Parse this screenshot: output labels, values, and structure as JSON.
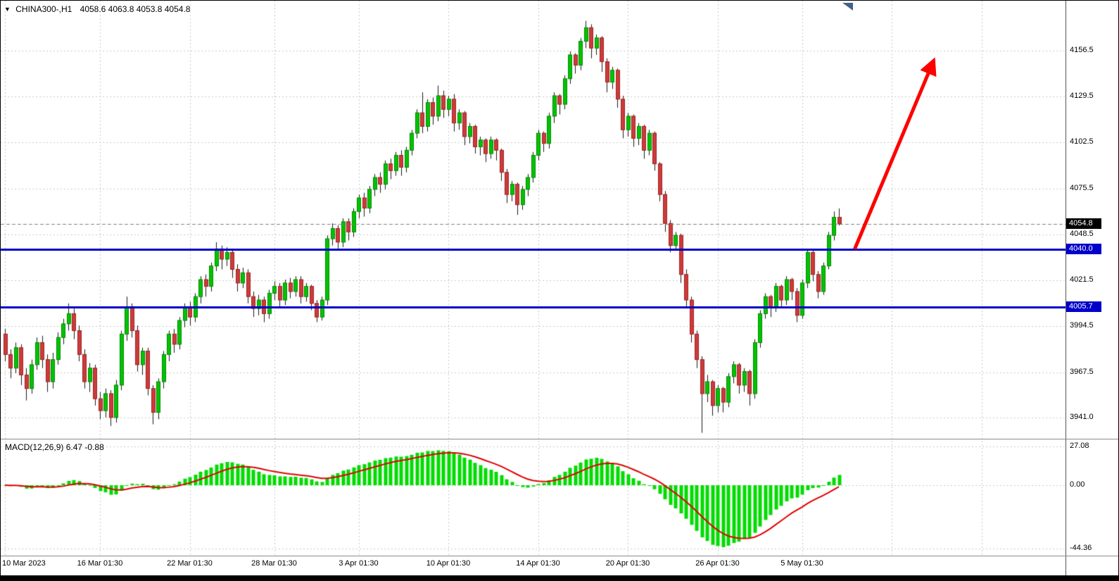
{
  "header": {
    "symbol_timeframe": "CHINA300-,H1",
    "quote": "4058.6 4063.8 4053.8 4054.8"
  },
  "chart_data": {
    "type": "candlestick",
    "title": "CHINA300-,H1",
    "timeframe": "H1",
    "current_bar": {
      "open": 4058.6,
      "high": 4063.8,
      "low": 4053.8,
      "close": 4054.8
    },
    "price_axis": {
      "labels": [
        "4156.5",
        "4129.5",
        "4102.5",
        "4075.5",
        "4048.5",
        "4021.5",
        "3994.5",
        "3967.5",
        "3941.0"
      ],
      "ylim": [
        3928.5,
        4175.5
      ]
    },
    "time_axis": {
      "ticks": [
        {
          "label": "10 Mar 2023",
          "index": 0
        },
        {
          "label": "16 Mar 01:30",
          "index": 18
        },
        {
          "label": "22 Mar 01:30",
          "index": 35
        },
        {
          "label": "28 Mar 01:30",
          "index": 51
        },
        {
          "label": "3 Apr 01:30",
          "index": 67
        },
        {
          "label": "10 Apr 01:30",
          "index": 84
        },
        {
          "label": "14 Apr 01:30",
          "index": 101
        },
        {
          "label": "20 Apr 01:30",
          "index": 118
        },
        {
          "label": "26 Apr 01:30",
          "index": 135
        },
        {
          "label": "5 May 01:30",
          "index": 151
        },
        {
          "label": "",
          "index": 168
        },
        {
          "label": "",
          "index": 185
        }
      ]
    },
    "current_price": {
      "value": 4054.8,
      "label": "4054.8",
      "tag_bg": "#000000"
    },
    "hlines": [
      {
        "price": 4040.0,
        "label": "4040.0",
        "color": "#0000C8"
      },
      {
        "price": 4005.7,
        "label": "4005.7",
        "color": "#0000C8"
      }
    ],
    "arrow": {
      "from_index": 161,
      "from_price": 4040,
      "to_index": 176,
      "to_price": 4151,
      "color": "#FF0000"
    },
    "macd": {
      "label": "MACD(12,26,9) 6.47 -0.88",
      "fast": 12,
      "slow": 26,
      "signal": 9,
      "value": 6.47,
      "signal_value": -0.88,
      "axis_labels": [
        "27.08",
        "0.00",
        "-44.36"
      ],
      "histogram_color": "#00DC00",
      "signal_color": "#E00000"
    },
    "colors": {
      "bull": "#00C400",
      "bull_border": "#008800",
      "bear": "#CC3B3B",
      "bear_border": "#A02020",
      "wick": "#1a1a1a",
      "grid": "#c9c9c9",
      "current_price_line": "#808080"
    },
    "candles": [
      [
        3990,
        3993,
        3974,
        3978
      ],
      [
        3978,
        3981,
        3964,
        3970
      ],
      [
        3970,
        3985,
        3967,
        3982
      ],
      [
        3982,
        3984,
        3960,
        3966
      ],
      [
        3966,
        3970,
        3951,
        3958
      ],
      [
        3958,
        3975,
        3955,
        3972
      ],
      [
        3972,
        3988,
        3969,
        3985
      ],
      [
        3985,
        3989,
        3970,
        3975
      ],
      [
        3975,
        3978,
        3956,
        3962
      ],
      [
        3962,
        3979,
        3958,
        3975
      ],
      [
        3975,
        3991,
        3972,
        3988
      ],
      [
        3988,
        3999,
        3984,
        3996
      ],
      [
        3996,
        4008,
        3992,
        4002
      ],
      [
        4002,
        4005,
        3987,
        3992
      ],
      [
        3992,
        3995,
        3974,
        3978
      ],
      [
        3978,
        3981,
        3958,
        3962
      ],
      [
        3962,
        3973,
        3956,
        3970
      ],
      [
        3970,
        3972,
        3948,
        3952
      ],
      [
        3952,
        3956,
        3940,
        3945
      ],
      [
        3945,
        3958,
        3941,
        3955
      ],
      [
        3955,
        3957,
        3936,
        3941
      ],
      [
        3941,
        3963,
        3938,
        3960
      ],
      [
        3960,
        3992,
        3957,
        3990
      ],
      [
        3990,
        4012,
        3986,
        4006
      ],
      [
        4006,
        4008,
        3988,
        3992
      ],
      [
        3992,
        3995,
        3968,
        3972
      ],
      [
        3972,
        3982,
        3966,
        3980
      ],
      [
        3980,
        3982,
        3954,
        3958
      ],
      [
        3958,
        3960,
        3937,
        3944
      ],
      [
        3944,
        3964,
        3940,
        3962
      ],
      [
        3962,
        3980,
        3958,
        3978
      ],
      [
        3978,
        3992,
        3974,
        3990
      ],
      [
        3990,
        3993,
        3979,
        3984
      ],
      [
        3984,
        4000,
        3981,
        3998
      ],
      [
        3998,
        4008,
        3994,
        4006
      ],
      [
        4006,
        4009,
        3995,
        4000
      ],
      [
        4000,
        4014,
        3997,
        4012
      ],
      [
        4012,
        4024,
        4008,
        4022
      ],
      [
        4022,
        4025,
        4012,
        4018
      ],
      [
        4018,
        4032,
        4015,
        4030
      ],
      [
        4030,
        4044,
        4027,
        4040
      ],
      [
        4040,
        4042,
        4028,
        4034
      ],
      [
        4034,
        4041,
        4030,
        4038
      ],
      [
        4038,
        4040,
        4023,
        4028
      ],
      [
        4028,
        4031,
        4015,
        4020
      ],
      [
        4020,
        4029,
        4017,
        4026
      ],
      [
        4026,
        4028,
        4008,
        4012
      ],
      [
        4012,
        4015,
        4000,
        4005
      ],
      [
        4005,
        4013,
        4001,
        4010
      ],
      [
        4010,
        4012,
        3997,
        4002
      ],
      [
        4002,
        4016,
        3999,
        4014
      ],
      [
        4014,
        4021,
        4010,
        4018
      ],
      [
        4018,
        4020,
        4006,
        4010
      ],
      [
        4010,
        4022,
        4007,
        4020
      ],
      [
        4020,
        4023,
        4011,
        4015
      ],
      [
        4015,
        4024,
        4012,
        4022
      ],
      [
        4022,
        4024,
        4008,
        4012
      ],
      [
        4012,
        4020,
        4009,
        4018
      ],
      [
        4018,
        4019,
        4004,
        4008
      ],
      [
        4008,
        4010,
        3997,
        4000
      ],
      [
        4000,
        4012,
        3998,
        4010
      ],
      [
        4010,
        4048,
        4007,
        4046
      ],
      [
        4046,
        4055,
        4042,
        4052
      ],
      [
        4052,
        4054,
        4040,
        4044
      ],
      [
        4044,
        4058,
        4041,
        4056
      ],
      [
        4056,
        4058,
        4045,
        4050
      ],
      [
        4050,
        4064,
        4047,
        4062
      ],
      [
        4062,
        4072,
        4058,
        4070
      ],
      [
        4070,
        4073,
        4059,
        4064
      ],
      [
        4064,
        4077,
        4061,
        4075
      ],
      [
        4075,
        4084,
        4071,
        4082
      ],
      [
        4082,
        4085,
        4073,
        4078
      ],
      [
        4078,
        4092,
        4075,
        4090
      ],
      [
        4090,
        4093,
        4081,
        4086
      ],
      [
        4086,
        4097,
        4083,
        4095
      ],
      [
        4095,
        4098,
        4083,
        4088
      ],
      [
        4088,
        4100,
        4085,
        4098
      ],
      [
        4098,
        4110,
        4095,
        4108
      ],
      [
        4108,
        4122,
        4105,
        4120
      ],
      [
        4120,
        4132,
        4108,
        4112
      ],
      [
        4112,
        4128,
        4109,
        4126
      ],
      [
        4126,
        4129,
        4113,
        4118
      ],
      [
        4118,
        4136,
        4115,
        4130
      ],
      [
        4130,
        4133,
        4117,
        4122
      ],
      [
        4122,
        4130,
        4118,
        4128
      ],
      [
        4128,
        4131,
        4109,
        4114
      ],
      [
        4114,
        4122,
        4110,
        4120
      ],
      [
        4120,
        4121,
        4101,
        4106
      ],
      [
        4106,
        4114,
        4102,
        4112
      ],
      [
        4112,
        4113,
        4096,
        4100
      ],
      [
        4100,
        4106,
        4095,
        4104
      ],
      [
        4104,
        4105,
        4091,
        4096
      ],
      [
        4096,
        4106,
        4093,
        4104
      ],
      [
        4104,
        4105,
        4092,
        4098
      ],
      [
        4098,
        4099,
        4080,
        4085
      ],
      [
        4085,
        4087,
        4067,
        4072
      ],
      [
        4072,
        4080,
        4068,
        4078
      ],
      [
        4078,
        4079,
        4060,
        4066
      ],
      [
        4066,
        4077,
        4063,
        4075
      ],
      [
        4075,
        4084,
        4071,
        4082
      ],
      [
        4082,
        4097,
        4079,
        4095
      ],
      [
        4095,
        4110,
        4092,
        4108
      ],
      [
        4108,
        4109,
        4097,
        4102
      ],
      [
        4102,
        4120,
        4099,
        4118
      ],
      [
        4118,
        4132,
        4114,
        4130
      ],
      [
        4130,
        4131,
        4119,
        4125
      ],
      [
        4125,
        4142,
        4122,
        4140
      ],
      [
        4140,
        4156,
        4137,
        4154
      ],
      [
        4154,
        4155,
        4143,
        4148
      ],
      [
        4148,
        4164,
        4145,
        4162
      ],
      [
        4162,
        4174,
        4158,
        4170
      ],
      [
        4170,
        4172,
        4152,
        4158
      ],
      [
        4158,
        4166,
        4154,
        4164
      ],
      [
        4164,
        4165,
        4144,
        4150
      ],
      [
        4150,
        4152,
        4132,
        4138
      ],
      [
        4138,
        4147,
        4134,
        4145
      ],
      [
        4145,
        4146,
        4123,
        4128
      ],
      [
        4128,
        4130,
        4105,
        4110
      ],
      [
        4110,
        4120,
        4106,
        4118
      ],
      [
        4118,
        4119,
        4100,
        4105
      ],
      [
        4105,
        4114,
        4101,
        4112
      ],
      [
        4112,
        4113,
        4093,
        4098
      ],
      [
        4098,
        4110,
        4095,
        4108
      ],
      [
        4108,
        4109,
        4086,
        4090
      ],
      [
        4090,
        4091,
        4068,
        4072
      ],
      [
        4072,
        4074,
        4050,
        4055
      ],
      [
        4055,
        4057,
        4038,
        4042
      ],
      [
        4042,
        4050,
        4039,
        4048
      ],
      [
        4048,
        4049,
        4020,
        4025
      ],
      [
        4025,
        4028,
        4005,
        4010
      ],
      [
        4010,
        4012,
        3985,
        3990
      ],
      [
        3990,
        3992,
        3970,
        3975
      ],
      [
        3975,
        3977,
        3932,
        3955
      ],
      [
        3955,
        3966,
        3950,
        3962
      ],
      [
        3962,
        3963,
        3942,
        3948
      ],
      [
        3948,
        3960,
        3944,
        3958
      ],
      [
        3958,
        3959,
        3944,
        3950
      ],
      [
        3950,
        3967,
        3947,
        3965
      ],
      [
        3965,
        3974,
        3961,
        3972
      ],
      [
        3972,
        3973,
        3955,
        3960
      ],
      [
        3960,
        3970,
        3956,
        3968
      ],
      [
        3968,
        3969,
        3948,
        3955
      ],
      [
        3955,
        3987,
        3952,
        3985
      ],
      [
        3985,
        4004,
        3982,
        4002
      ],
      [
        4002,
        4014,
        3999,
        4012
      ],
      [
        4012,
        4013,
        4000,
        4006
      ],
      [
        4006,
        4020,
        4003,
        4018
      ],
      [
        4018,
        4019,
        4006,
        4010
      ],
      [
        4010,
        4024,
        4007,
        4022
      ],
      [
        4022,
        4023,
        4010,
        4015
      ],
      [
        4015,
        4017,
        3997,
        4001
      ],
      [
        4001,
        4022,
        3999,
        4020
      ],
      [
        4020,
        4040,
        4017,
        4038
      ],
      [
        4038,
        4039,
        4021,
        4025
      ],
      [
        4025,
        4027,
        4011,
        4015
      ],
      [
        4015,
        4032,
        4013,
        4030
      ],
      [
        4030,
        4050,
        4028,
        4048
      ],
      [
        4048,
        4062,
        4045,
        4058.6
      ],
      [
        4058.6,
        4063.8,
        4053.8,
        4054.8
      ]
    ]
  }
}
